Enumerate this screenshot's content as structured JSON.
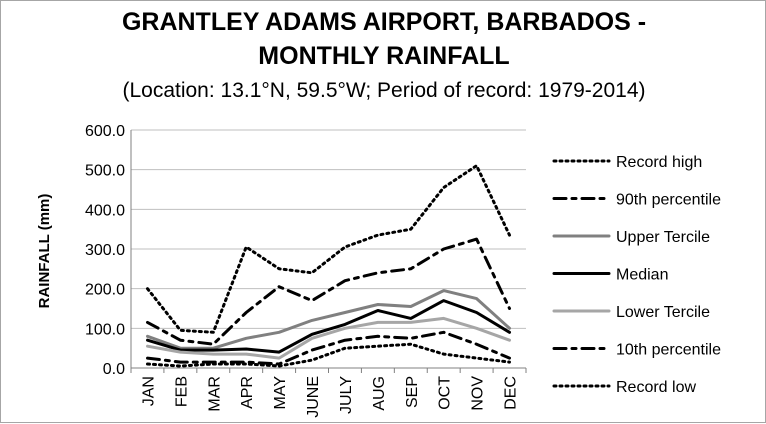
{
  "chart_data": {
    "type": "line",
    "title_lines": [
      "GRANTLEY ADAMS AIRPORT, BARBADOS -",
      "MONTHLY RAINFALL"
    ],
    "subtitle": "(Location: 13.1°N, 59.5°W; Period of record: 1979-2014)",
    "xlabel": "",
    "ylabel": "RAINFALL (mm)",
    "ylim": [
      0,
      600
    ],
    "yticks": [
      "0.0",
      "100.0",
      "200.0",
      "300.0",
      "400.0",
      "500.0",
      "600.0"
    ],
    "categories": [
      "JAN",
      "FEB",
      "MAR",
      "APR",
      "MAY",
      "JUNE",
      "JULY",
      "AUG",
      "SEP",
      "OCT",
      "NOV",
      "DEC"
    ],
    "grid": true,
    "legend_position": "right",
    "series": [
      {
        "name": "Record high",
        "color": "#000000",
        "style": "dotted",
        "values": [
          200,
          95,
          90,
          305,
          250,
          240,
          305,
          335,
          350,
          455,
          510,
          335
        ]
      },
      {
        "name": "90th percentile",
        "color": "#000000",
        "style": "dashdot",
        "values": [
          115,
          70,
          60,
          140,
          205,
          170,
          220,
          240,
          250,
          300,
          325,
          150
        ]
      },
      {
        "name": "Upper Tercile",
        "color": "#808080",
        "style": "solid",
        "values": [
          80,
          50,
          50,
          75,
          90,
          120,
          140,
          160,
          155,
          195,
          175,
          100
        ]
      },
      {
        "name": "Median",
        "color": "#000000",
        "style": "solid",
        "values": [
          70,
          45,
          45,
          48,
          40,
          85,
          110,
          145,
          125,
          170,
          140,
          90
        ]
      },
      {
        "name": "Lower Tercile",
        "color": "#a6a6a6",
        "style": "solid",
        "values": [
          55,
          40,
          35,
          35,
          25,
          75,
          100,
          115,
          115,
          125,
          100,
          70
        ]
      },
      {
        "name": "10th percentile",
        "color": "#000000",
        "style": "dashdot",
        "values": [
          25,
          15,
          15,
          15,
          10,
          45,
          70,
          80,
          75,
          90,
          60,
          25
        ]
      },
      {
        "name": "Record low",
        "color": "#000000",
        "style": "dotted",
        "values": [
          10,
          5,
          10,
          10,
          5,
          20,
          50,
          55,
          60,
          35,
          25,
          15
        ]
      }
    ]
  }
}
